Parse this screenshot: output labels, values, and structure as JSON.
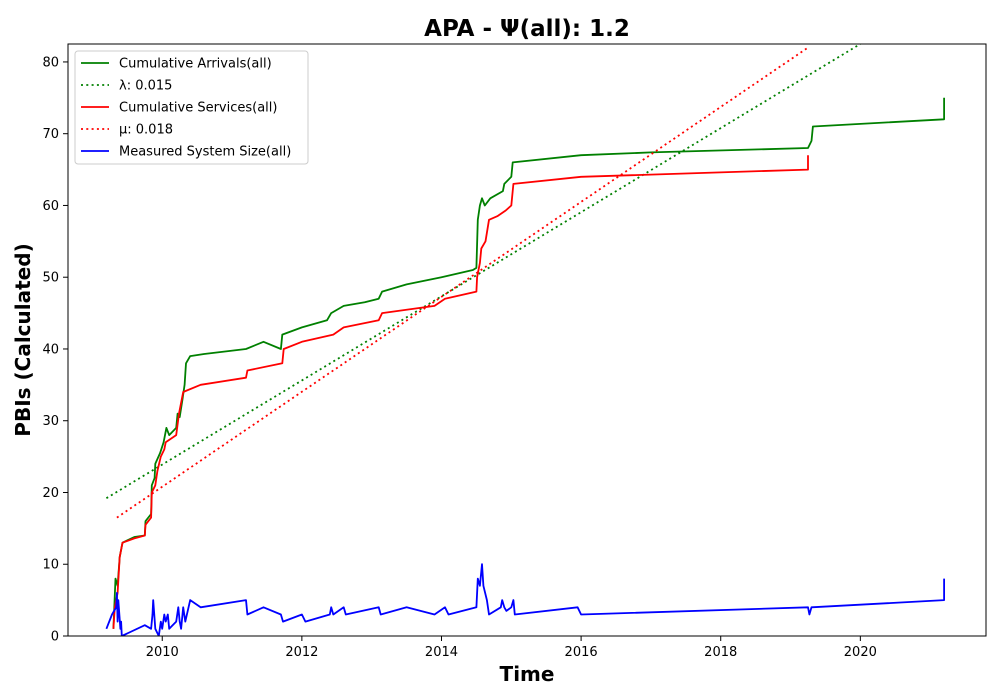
{
  "chart_data": {
    "type": "line",
    "title": "APA -  Ψ(all): 1.2",
    "xlabel": "Time",
    "ylabel": "PBIs (Calculated)",
    "xlim": [
      2008.65,
      2021.8
    ],
    "ylim": [
      0,
      82.5
    ],
    "xticks": [
      2010,
      2012,
      2014,
      2016,
      2018,
      2020
    ],
    "yticks": [
      0,
      10,
      20,
      30,
      40,
      50,
      60,
      70,
      80
    ],
    "grid": false,
    "legend_position": "top-left",
    "series": [
      {
        "name": "Cumulative Arrivals(all)",
        "color": "#008000",
        "style": "solid",
        "points": [
          [
            2009.3,
            1
          ],
          [
            2009.33,
            8
          ],
          [
            2009.36,
            7
          ],
          [
            2009.39,
            11
          ],
          [
            2009.43,
            13
          ],
          [
            2009.6,
            13.8
          ],
          [
            2009.75,
            14
          ],
          [
            2009.76,
            16
          ],
          [
            2009.84,
            17
          ],
          [
            2009.85,
            21
          ],
          [
            2009.89,
            22
          ],
          [
            2009.9,
            24
          ],
          [
            2009.97,
            25.5
          ],
          [
            2010.02,
            27
          ],
          [
            2010.06,
            29
          ],
          [
            2010.1,
            28
          ],
          [
            2010.2,
            29
          ],
          [
            2010.22,
            31
          ],
          [
            2010.25,
            30.5
          ],
          [
            2010.29,
            33
          ],
          [
            2010.32,
            35
          ],
          [
            2010.34,
            38
          ],
          [
            2010.4,
            39
          ],
          [
            2010.6,
            39.3
          ],
          [
            2011.2,
            40
          ],
          [
            2011.45,
            41
          ],
          [
            2011.7,
            40
          ],
          [
            2011.72,
            42
          ],
          [
            2012.0,
            43
          ],
          [
            2012.36,
            44
          ],
          [
            2012.42,
            45
          ],
          [
            2012.6,
            46
          ],
          [
            2012.9,
            46.5
          ],
          [
            2013.1,
            47
          ],
          [
            2013.15,
            48
          ],
          [
            2013.5,
            49
          ],
          [
            2014.0,
            50
          ],
          [
            2014.45,
            51
          ],
          [
            2014.5,
            51.3
          ],
          [
            2014.52,
            58
          ],
          [
            2014.55,
            60
          ],
          [
            2014.58,
            61
          ],
          [
            2014.62,
            60
          ],
          [
            2014.7,
            61
          ],
          [
            2014.88,
            62
          ],
          [
            2014.9,
            63
          ],
          [
            2015.0,
            64
          ],
          [
            2015.02,
            66
          ],
          [
            2016.0,
            67
          ],
          [
            2017.0,
            67.4
          ],
          [
            2019.25,
            68
          ],
          [
            2019.3,
            69
          ],
          [
            2019.32,
            71
          ],
          [
            2021.2,
            72
          ],
          [
            2021.2,
            75
          ]
        ]
      },
      {
        "name": "λ: 0.015",
        "color": "#008000",
        "style": "dotted",
        "points": [
          [
            2009.2,
            19.2
          ],
          [
            2020.0,
            82.5
          ]
        ]
      },
      {
        "name": "Cumulative Services(all)",
        "color": "#ff0000",
        "style": "solid",
        "points": [
          [
            2009.3,
            1
          ],
          [
            2009.32,
            4
          ],
          [
            2009.36,
            6
          ],
          [
            2009.39,
            11
          ],
          [
            2009.43,
            13
          ],
          [
            2009.6,
            13.6
          ],
          [
            2009.75,
            14
          ],
          [
            2009.76,
            15.5
          ],
          [
            2009.84,
            16.5
          ],
          [
            2009.85,
            20
          ],
          [
            2009.9,
            21
          ],
          [
            2009.93,
            23
          ],
          [
            2009.98,
            25
          ],
          [
            2010.03,
            26
          ],
          [
            2010.05,
            27
          ],
          [
            2010.2,
            28
          ],
          [
            2010.24,
            31
          ],
          [
            2010.3,
            34
          ],
          [
            2010.55,
            35
          ],
          [
            2011.2,
            36
          ],
          [
            2011.22,
            37
          ],
          [
            2011.72,
            38
          ],
          [
            2011.74,
            40
          ],
          [
            2012.0,
            41
          ],
          [
            2012.45,
            42
          ],
          [
            2012.6,
            43
          ],
          [
            2013.1,
            44
          ],
          [
            2013.15,
            45
          ],
          [
            2013.9,
            46
          ],
          [
            2014.05,
            47
          ],
          [
            2014.5,
            48
          ],
          [
            2014.51,
            50
          ],
          [
            2014.55,
            52
          ],
          [
            2014.57,
            54
          ],
          [
            2014.63,
            55
          ],
          [
            2014.68,
            58
          ],
          [
            2014.8,
            58.5
          ],
          [
            2014.92,
            59.3
          ],
          [
            2015.0,
            60
          ],
          [
            2015.03,
            63
          ],
          [
            2016.0,
            64
          ],
          [
            2019.25,
            65
          ],
          [
            2019.25,
            67
          ]
        ]
      },
      {
        "name": "μ: 0.018",
        "color": "#ff0000",
        "style": "dotted",
        "points": [
          [
            2009.35,
            16.5
          ],
          [
            2019.25,
            82
          ]
        ]
      },
      {
        "name": "Measured System Size(all)",
        "color": "#0000ff",
        "style": "solid",
        "points": [
          [
            2009.2,
            1
          ],
          [
            2009.28,
            3
          ],
          [
            2009.34,
            4
          ],
          [
            2009.35,
            6
          ],
          [
            2009.36,
            2
          ],
          [
            2009.37,
            5
          ],
          [
            2009.4,
            1
          ],
          [
            2009.41,
            2
          ],
          [
            2009.42,
            0
          ],
          [
            2009.75,
            1.5
          ],
          [
            2009.84,
            1
          ],
          [
            2009.86,
            3
          ],
          [
            2009.87,
            5
          ],
          [
            2009.9,
            1
          ],
          [
            2009.95,
            0
          ],
          [
            2009.98,
            2
          ],
          [
            2010.0,
            1
          ],
          [
            2010.03,
            3
          ],
          [
            2010.05,
            2
          ],
          [
            2010.08,
            3
          ],
          [
            2010.1,
            1
          ],
          [
            2010.2,
            2
          ],
          [
            2010.23,
            4
          ],
          [
            2010.25,
            2
          ],
          [
            2010.27,
            1
          ],
          [
            2010.3,
            4
          ],
          [
            2010.33,
            2
          ],
          [
            2010.4,
            5
          ],
          [
            2010.55,
            4
          ],
          [
            2011.2,
            5
          ],
          [
            2011.22,
            3
          ],
          [
            2011.45,
            4
          ],
          [
            2011.7,
            3
          ],
          [
            2011.73,
            2
          ],
          [
            2012.0,
            3
          ],
          [
            2012.05,
            2
          ],
          [
            2012.4,
            3
          ],
          [
            2012.42,
            4
          ],
          [
            2012.45,
            3
          ],
          [
            2012.6,
            4
          ],
          [
            2012.63,
            3
          ],
          [
            2013.1,
            4
          ],
          [
            2013.13,
            3
          ],
          [
            2013.5,
            4
          ],
          [
            2013.9,
            3
          ],
          [
            2014.05,
            4
          ],
          [
            2014.1,
            3
          ],
          [
            2014.5,
            4
          ],
          [
            2014.52,
            8
          ],
          [
            2014.55,
            7
          ],
          [
            2014.57,
            9
          ],
          [
            2014.58,
            10
          ],
          [
            2014.6,
            7
          ],
          [
            2014.65,
            5
          ],
          [
            2014.68,
            3
          ],
          [
            2014.85,
            4
          ],
          [
            2014.87,
            5
          ],
          [
            2014.9,
            4
          ],
          [
            2014.93,
            3.5
          ],
          [
            2015.0,
            4
          ],
          [
            2015.03,
            5
          ],
          [
            2015.05,
            3
          ],
          [
            2015.95,
            4
          ],
          [
            2016.0,
            3
          ],
          [
            2019.25,
            4
          ],
          [
            2019.27,
            3
          ],
          [
            2019.3,
            4
          ],
          [
            2021.2,
            5
          ],
          [
            2021.2,
            8
          ]
        ]
      }
    ]
  }
}
